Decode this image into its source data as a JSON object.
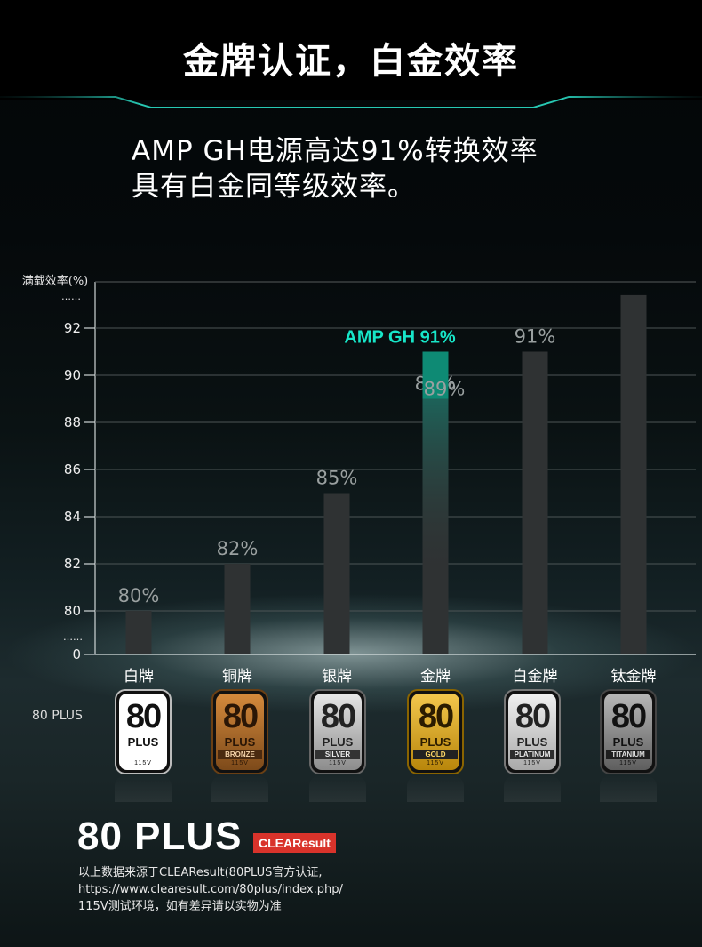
{
  "header": {
    "title": "金牌认证，白金效率"
  },
  "intro": {
    "line1": "AMP GH电源高达91%转换效率",
    "line2": "具有白金同等级效率。"
  },
  "colors": {
    "highlight": "#17e6c8",
    "bar": "#2f3233",
    "amp_bar": "#0e8a74"
  },
  "chart_data": {
    "type": "bar",
    "ylabel": "满载效率(%)",
    "y_ticks": [
      "92",
      "90",
      "88",
      "86",
      "84",
      "82",
      "80",
      "0"
    ],
    "y_break_top": "……",
    "y_break_bottom": "……",
    "categories": [
      "白牌",
      "铜牌",
      "银牌",
      "金牌",
      "白金牌",
      "钛金牌"
    ],
    "values": [
      80,
      82,
      85,
      89,
      91,
      93.4
    ],
    "data_labels": [
      "80%",
      "82%",
      "85%",
      "89%",
      "91%",
      ""
    ],
    "amp_overlay": {
      "category": "金牌",
      "value": 91,
      "label": "AMP GH 91%"
    },
    "ylim": [
      79.5,
      94
    ],
    "grid": true
  },
  "badges": {
    "row_label": "80 PLUS",
    "items": [
      {
        "name": "",
        "volt": "115V",
        "theme": "white"
      },
      {
        "name": "BRONZE",
        "volt": "115V",
        "theme": "bronze"
      },
      {
        "name": "SILVER",
        "volt": "115V",
        "theme": "silver"
      },
      {
        "name": "GOLD",
        "volt": "115V",
        "theme": "gold"
      },
      {
        "name": "PLATINUM",
        "volt": "115V",
        "theme": "platinum"
      },
      {
        "name": "TITANIUM",
        "volt": "115V",
        "theme": "titanium"
      }
    ],
    "big_text": "80",
    "plus_text": "PLUS"
  },
  "footer": {
    "logo_text": "80 PLUS",
    "clear_badge": "CLEAResult",
    "source_line1": "以上数据来源于CLEAResult(80PLUS官方认证,",
    "source_line2": "https://www.clearesult.com/80plus/index.php/",
    "source_line3": "115V测试环境，如有差异请以实物为准"
  }
}
